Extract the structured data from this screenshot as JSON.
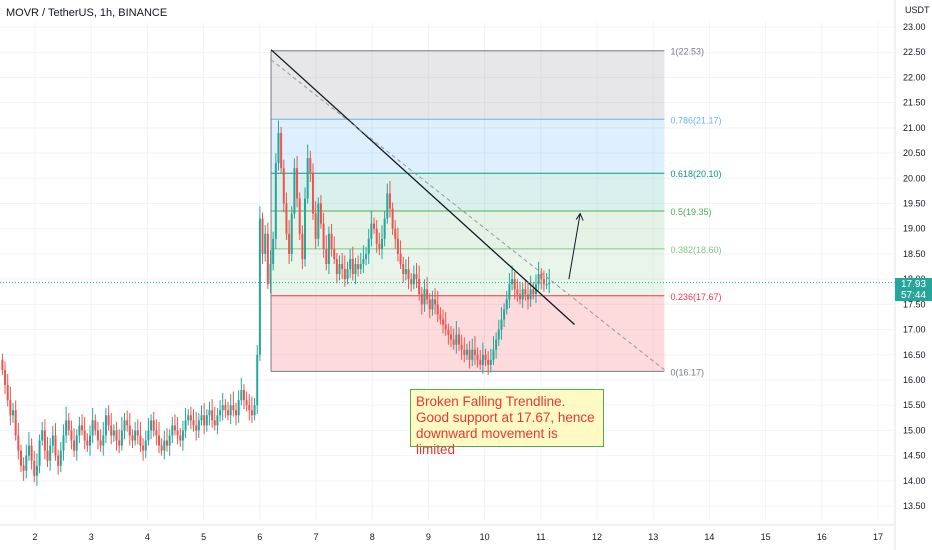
{
  "header": {
    "title": "MOVR / TetherUS, 1h, BINANCE"
  },
  "axis": {
    "currency": "USDT"
  },
  "annotation": {
    "text": "Broken Falling Trendline. Good support at 17.67, hence downward movement is limited"
  },
  "last_price": {
    "value": "17.93",
    "countdown": "57:44"
  },
  "colors": {
    "up": "#26a69a",
    "down": "#ef5350",
    "grid": "#f0f3fa"
  },
  "chart_data": {
    "type": "candlestick",
    "symbol": "MOVR / TetherUS",
    "interval": "1h",
    "exchange": "BINANCE",
    "y_ticks": [
      13.5,
      14.0,
      14.5,
      15.0,
      15.5,
      16.0,
      16.5,
      17.0,
      17.5,
      18.0,
      18.5,
      19.0,
      19.5,
      20.0,
      20.5,
      21.0,
      21.5,
      22.0,
      22.5,
      23.0
    ],
    "y_tick_labels": [
      "13.50",
      "14.00",
      "14.50",
      "15.00",
      "15.50",
      "16.00",
      "16.50",
      "17.00",
      "17.50",
      "18.00",
      "18.50",
      "19.00",
      "19.50",
      "20.00",
      "20.50",
      "21.00",
      "21.50",
      "22.00",
      "22.50",
      "23.00"
    ],
    "ylim": [
      13.3,
      23.2
    ],
    "x_ticks": [
      2,
      3,
      4,
      5,
      6,
      7,
      8,
      9,
      10,
      11,
      12,
      13,
      14,
      15,
      16,
      17
    ],
    "x_tick_labels": [
      "2",
      "3",
      "4",
      "5",
      "6",
      "7",
      "8",
      "9",
      "10",
      "11",
      "12",
      "13",
      "14",
      "15",
      "16",
      "17"
    ],
    "xlim": [
      1.4,
      17.4
    ],
    "close_prices": [
      16.2,
      15.9,
      15.6,
      15.3,
      15.4,
      14.9,
      14.6,
      14.3,
      14.2,
      14.5,
      14.7,
      14.4,
      14.1,
      14.3,
      14.8,
      15.0,
      14.6,
      14.4,
      14.7,
      14.9,
      14.5,
      14.3,
      14.6,
      14.9,
      15.2,
      15.0,
      14.8,
      14.6,
      14.9,
      15.1,
      15.0,
      14.8,
      14.7,
      14.9,
      15.2,
      15.0,
      14.8,
      14.7,
      14.9,
      15.3,
      15.1,
      14.9,
      15.0,
      14.8,
      14.7,
      15.0,
      15.2,
      15.1,
      14.9,
      14.8,
      15.0,
      14.9,
      14.7,
      14.6,
      14.8,
      15.0,
      15.2,
      15.0,
      14.9,
      14.7,
      14.6,
      14.8,
      14.7,
      14.9,
      15.1,
      15.0,
      14.9,
      14.8,
      15.0,
      15.2,
      15.3,
      15.2,
      15.1,
      15.0,
      15.2,
      15.3,
      15.1,
      15.3,
      15.4,
      15.2,
      15.1,
      15.3,
      15.4,
      15.5,
      15.4,
      15.3,
      15.5,
      15.4,
      15.3,
      15.6,
      15.8,
      15.6,
      15.5,
      15.4,
      15.3,
      15.5,
      16.5,
      19.2,
      18.5,
      18.9,
      17.9,
      18.3,
      18.8,
      20.3,
      20.9,
      20.2,
      19.5,
      18.9,
      18.5,
      19.3,
      20.2,
      19.6,
      18.9,
      18.4,
      19.6,
      20.4,
      20.1,
      19.3,
      18.8,
      19.5,
      19.1,
      18.6,
      18.3,
      18.9,
      18.6,
      18.4,
      18.1,
      18.3,
      18.2,
      18.0,
      18.2,
      18.4,
      18.1,
      18.3,
      18.2,
      18.3,
      18.4,
      18.5,
      18.8,
      19.1,
      19.0,
      18.7,
      18.6,
      18.8,
      19.2,
      19.7,
      19.4,
      19.0,
      18.8,
      18.5,
      18.3,
      18.1,
      18.2,
      18.0,
      17.9,
      18.1,
      18.0,
      17.7,
      17.5,
      17.8,
      17.6,
      17.4,
      17.6,
      17.5,
      17.3,
      17.2,
      17.1,
      17.0,
      16.9,
      16.8,
      16.7,
      16.9,
      16.7,
      16.6,
      16.5,
      16.6,
      16.4,
      16.6,
      16.5,
      16.4,
      16.3,
      16.5,
      16.4,
      16.3,
      16.4,
      16.6,
      16.8,
      17.0,
      17.2,
      17.4,
      17.6,
      17.9,
      18.0,
      17.8,
      17.7,
      17.6,
      17.8,
      17.7,
      17.6,
      17.8,
      17.7,
      17.9,
      18.1,
      18.0,
      17.9,
      17.9,
      17.93
    ],
    "fibonacci": {
      "levels": [
        {
          "ratio_label": "1",
          "price": 22.53,
          "label": "1(22.53)"
        },
        {
          "ratio_label": "0.786",
          "price": 21.17,
          "label": "0.786(21.17)"
        },
        {
          "ratio_label": "0.618",
          "price": 20.1,
          "label": "0.618(20.10)"
        },
        {
          "ratio_label": "0.5",
          "price": 19.35,
          "label": "0.5(19.35)"
        },
        {
          "ratio_label": "0.382",
          "price": 18.6,
          "label": "0.382(18.60)"
        },
        {
          "ratio_label": "0.236",
          "price": 17.67,
          "label": "0.236(17.67)"
        },
        {
          "ratio_label": "0",
          "price": 16.17,
          "label": "0(16.17)"
        }
      ],
      "x_start": 6.2,
      "x_end": 13.2
    },
    "trendline": {
      "x": [
        6.2,
        11.6
      ],
      "y": [
        22.55,
        17.1
      ]
    },
    "dashed_trendline": {
      "x": [
        6.2,
        13.2
      ],
      "y": [
        22.35,
        16.2
      ]
    },
    "arrow": {
      "x": [
        11.5,
        11.7
      ],
      "y": [
        18.0,
        19.3
      ]
    },
    "last_price": 17.93,
    "last_price_label": "17.93"
  }
}
